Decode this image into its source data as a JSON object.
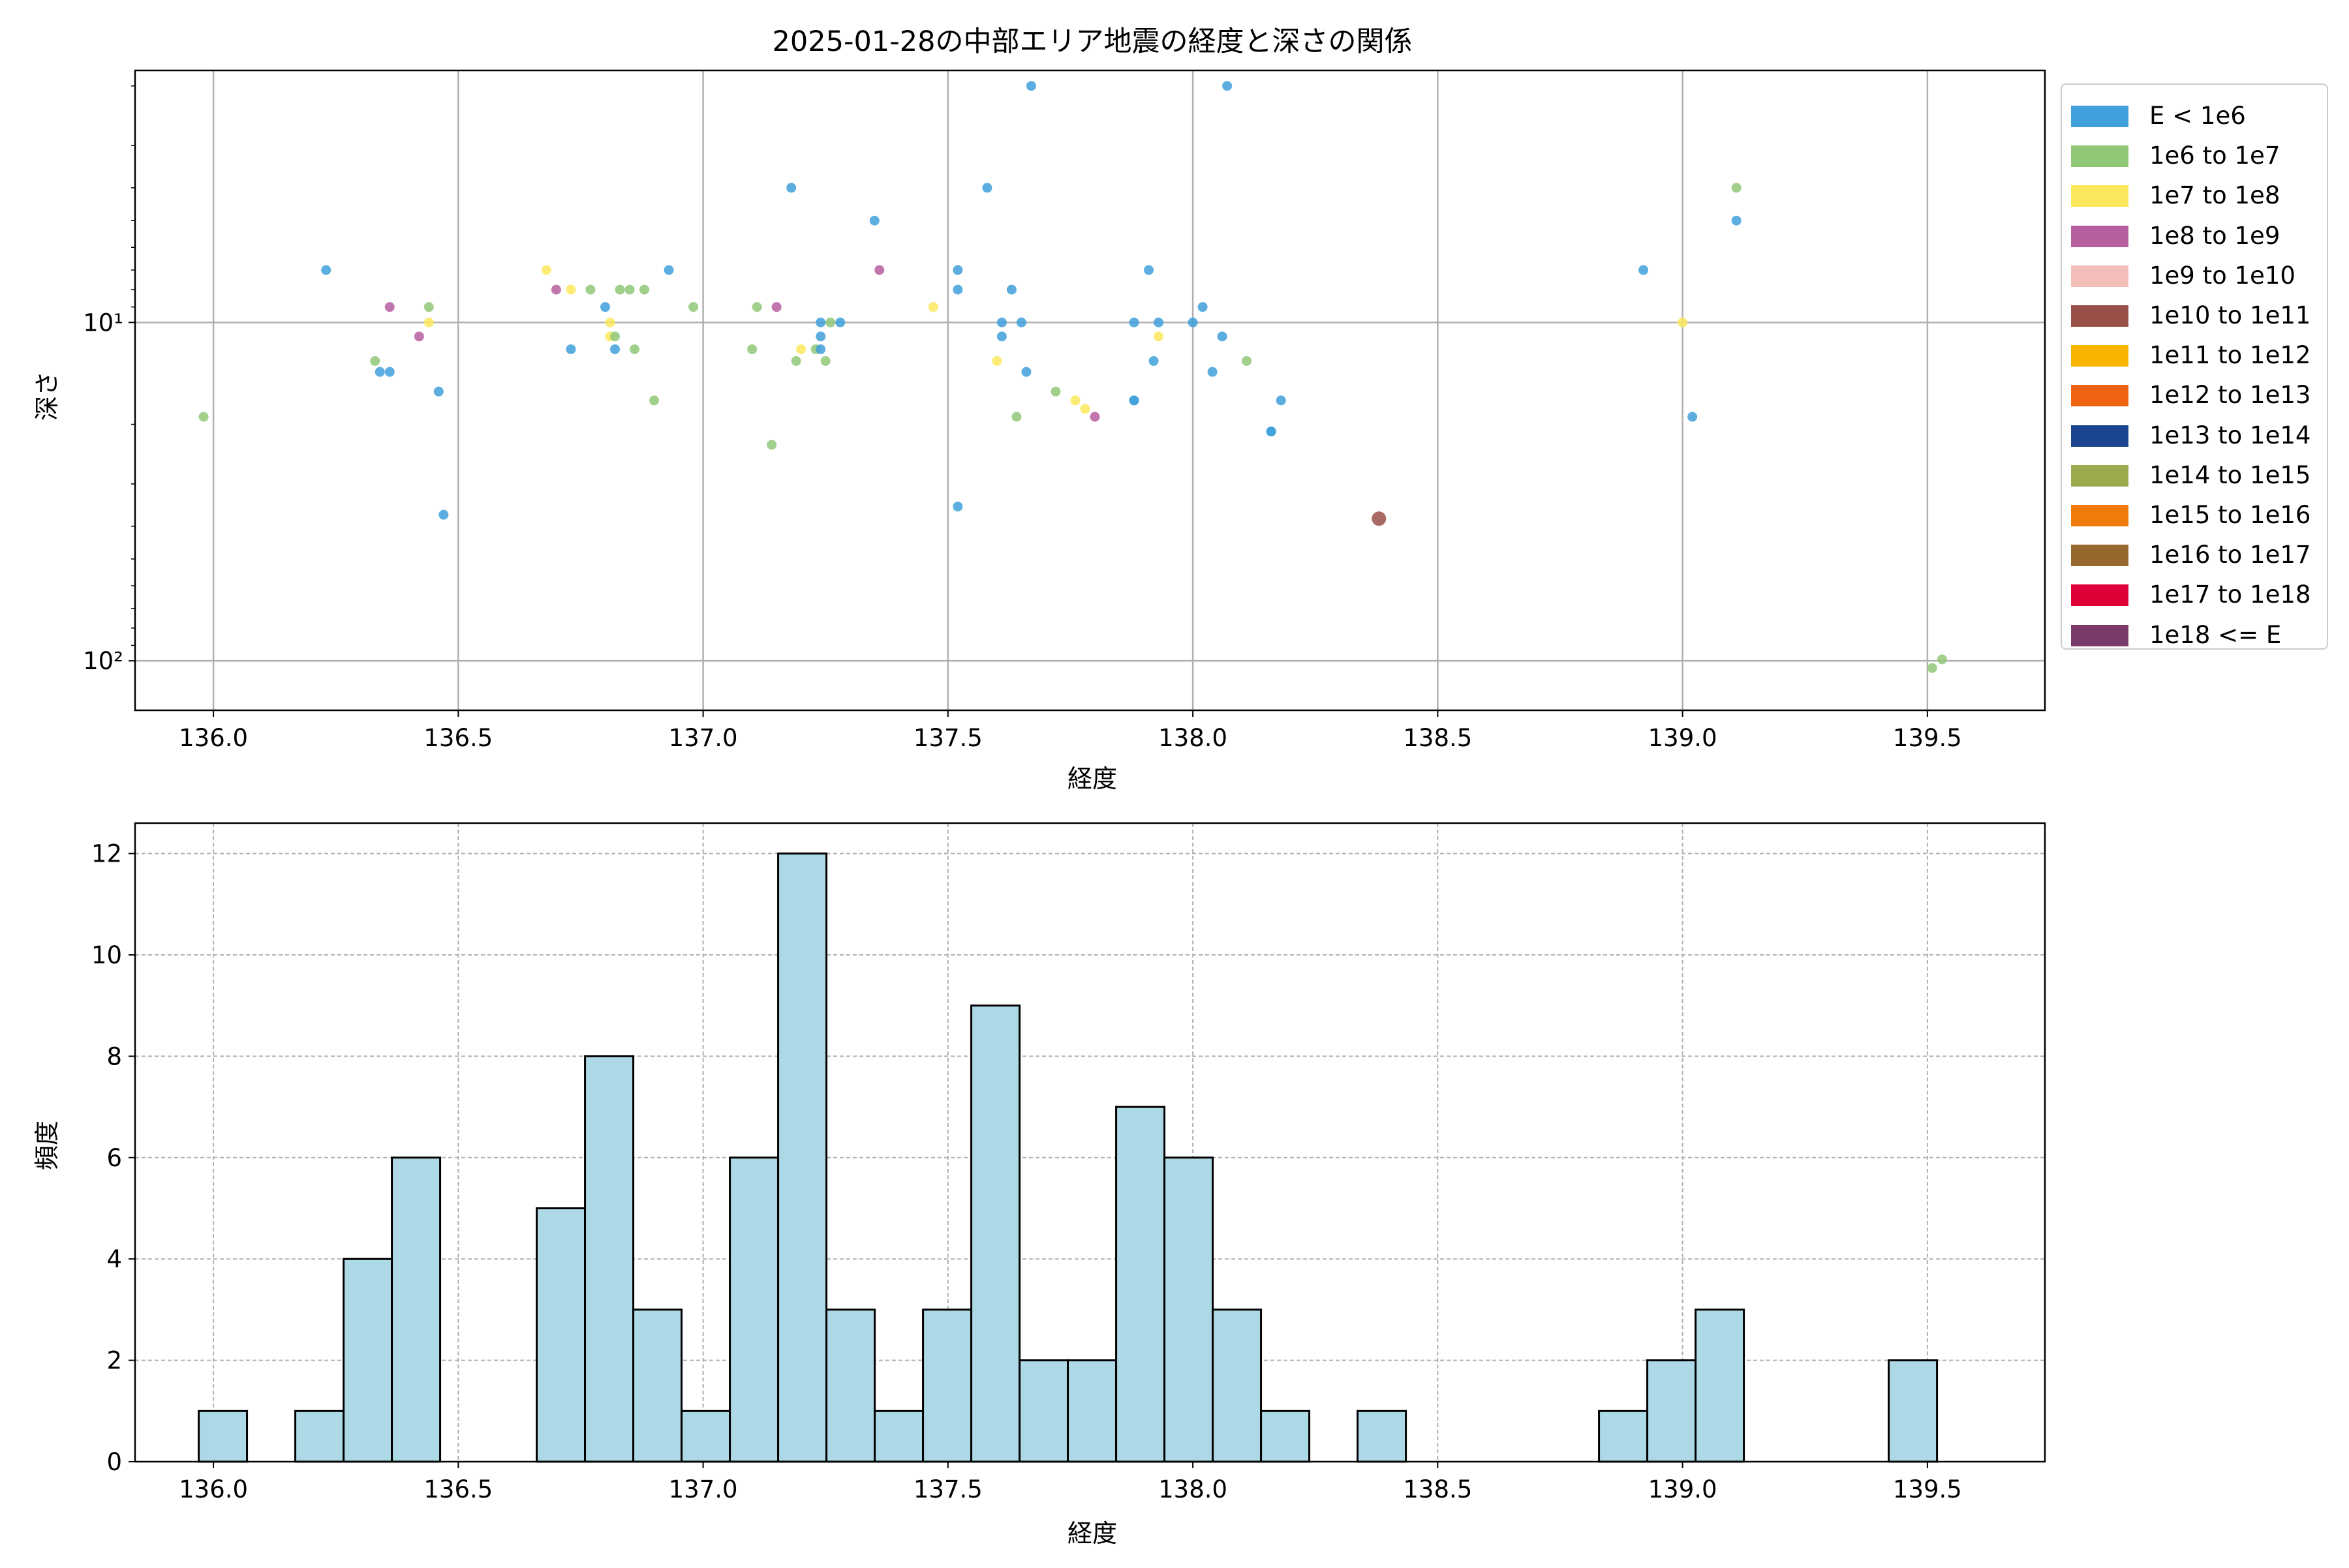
{
  "chart_data": [
    {
      "type": "scatter",
      "title": "2025-01-28の中部エリア地震の経度と深さの関係",
      "xlabel": "経度",
      "ylabel": "深さ",
      "xlim": [
        135.84,
        139.74
      ],
      "ylim": [
        140,
        1.8
      ],
      "yscale": "log",
      "y_inverted": true,
      "xticks": [
        136.0,
        136.5,
        137.0,
        137.5,
        138.0,
        138.5,
        139.0,
        139.5
      ],
      "xtick_labels": [
        "136.0",
        "136.5",
        "137.0",
        "137.5",
        "138.0",
        "138.5",
        "139.0",
        "139.5"
      ],
      "yticks": [
        10,
        100
      ],
      "ytick_labels": [
        "10¹",
        "10²"
      ],
      "grid": true,
      "legend_position": "outside right",
      "legend": [
        {
          "label": "E < 1e6",
          "color": "#3fa0db"
        },
        {
          "label": "1e6 to 1e7",
          "color": "#90c878"
        },
        {
          "label": "1e7 to 1e8",
          "color": "#fbe85c"
        },
        {
          "label": "1e8 to 1e9",
          "color": "#b65fa0"
        },
        {
          "label": "1e9 to 1e10",
          "color": "#f4bfbb"
        },
        {
          "label": "1e10 to 1e11",
          "color": "#9a5049"
        },
        {
          "label": "1e11 to 1e12",
          "color": "#f7b500"
        },
        {
          "label": "1e12 to 1e13",
          "color": "#ee6311"
        },
        {
          "label": "1e13 to 1e14",
          "color": "#1a4490"
        },
        {
          "label": "1e14 to 1e15",
          "color": "#9aab4e"
        },
        {
          "label": "1e15 to 1e16",
          "color": "#ef7b0a"
        },
        {
          "label": "1e16 to 1e17",
          "color": "#94692b"
        },
        {
          "label": "1e17 to 1e18",
          "color": "#de0037"
        },
        {
          "label": "1e18 <= E",
          "color": "#7b3b6a"
        }
      ],
      "points": [
        {
          "x": 135.98,
          "y": 19,
          "c": 1
        },
        {
          "x": 136.23,
          "y": 7,
          "c": 0
        },
        {
          "x": 136.33,
          "y": 13,
          "c": 1
        },
        {
          "x": 136.34,
          "y": 14,
          "c": 0
        },
        {
          "x": 136.36,
          "y": 14,
          "c": 0
        },
        {
          "x": 136.36,
          "y": 9,
          "c": 3
        },
        {
          "x": 136.42,
          "y": 11,
          "c": 3
        },
        {
          "x": 136.44,
          "y": 9,
          "c": 1
        },
        {
          "x": 136.44,
          "y": 10,
          "c": 2
        },
        {
          "x": 136.46,
          "y": 16,
          "c": 0
        },
        {
          "x": 136.47,
          "y": 37,
          "c": 0
        },
        {
          "x": 136.68,
          "y": 7,
          "c": 2
        },
        {
          "x": 136.7,
          "y": 8,
          "c": 3
        },
        {
          "x": 136.73,
          "y": 8,
          "c": 2
        },
        {
          "x": 136.73,
          "y": 12,
          "c": 0
        },
        {
          "x": 136.77,
          "y": 8,
          "c": 1
        },
        {
          "x": 136.8,
          "y": 9,
          "c": 0
        },
        {
          "x": 136.81,
          "y": 10,
          "c": 2
        },
        {
          "x": 136.81,
          "y": 11,
          "c": 2
        },
        {
          "x": 136.82,
          "y": 11,
          "c": 1
        },
        {
          "x": 136.82,
          "y": 12,
          "c": 0
        },
        {
          "x": 136.83,
          "y": 8,
          "c": 1
        },
        {
          "x": 136.85,
          "y": 8,
          "c": 1
        },
        {
          "x": 136.86,
          "y": 12,
          "c": 1
        },
        {
          "x": 136.88,
          "y": 8,
          "c": 1
        },
        {
          "x": 136.9,
          "y": 17,
          "c": 1
        },
        {
          "x": 136.93,
          "y": 7,
          "c": 0
        },
        {
          "x": 136.98,
          "y": 9,
          "c": 1
        },
        {
          "x": 137.1,
          "y": 12,
          "c": 1
        },
        {
          "x": 137.11,
          "y": 9,
          "c": 1
        },
        {
          "x": 137.14,
          "y": 23,
          "c": 1
        },
        {
          "x": 137.15,
          "y": 9,
          "c": 3
        },
        {
          "x": 137.18,
          "y": 4,
          "c": 0
        },
        {
          "x": 137.19,
          "y": 13,
          "c": 1
        },
        {
          "x": 137.2,
          "y": 12,
          "c": 2
        },
        {
          "x": 137.23,
          "y": 12,
          "c": 1
        },
        {
          "x": 137.24,
          "y": 11,
          "c": 0
        },
        {
          "x": 137.24,
          "y": 10,
          "c": 0
        },
        {
          "x": 137.24,
          "y": 12,
          "c": 0
        },
        {
          "x": 137.25,
          "y": 13,
          "c": 1
        },
        {
          "x": 137.26,
          "y": 10,
          "c": 1
        },
        {
          "x": 137.28,
          "y": 10,
          "c": 0
        },
        {
          "x": 137.35,
          "y": 5,
          "c": 0
        },
        {
          "x": 137.36,
          "y": 7,
          "c": 3
        },
        {
          "x": 137.47,
          "y": 9,
          "c": 2
        },
        {
          "x": 137.52,
          "y": 35,
          "c": 0
        },
        {
          "x": 137.52,
          "y": 7,
          "c": 0
        },
        {
          "x": 137.52,
          "y": 8,
          "c": 0
        },
        {
          "x": 137.58,
          "y": 4,
          "c": 0
        },
        {
          "x": 137.6,
          "y": 13,
          "c": 2
        },
        {
          "x": 137.61,
          "y": 11,
          "c": 0
        },
        {
          "x": 137.61,
          "y": 10,
          "c": 0
        },
        {
          "x": 137.63,
          "y": 8,
          "c": 0
        },
        {
          "x": 137.64,
          "y": 19,
          "c": 1
        },
        {
          "x": 137.65,
          "y": 10,
          "c": 0
        },
        {
          "x": 137.66,
          "y": 14,
          "c": 0
        },
        {
          "x": 137.67,
          "y": 2,
          "c": 0
        },
        {
          "x": 137.72,
          "y": 16,
          "c": 1
        },
        {
          "x": 137.76,
          "y": 17,
          "c": 2
        },
        {
          "x": 137.78,
          "y": 18,
          "c": 2
        },
        {
          "x": 137.8,
          "y": 19,
          "c": 3
        },
        {
          "x": 137.88,
          "y": 17,
          "c": 0
        },
        {
          "x": 137.88,
          "y": 17,
          "c": 0
        },
        {
          "x": 137.88,
          "y": 10,
          "c": 0
        },
        {
          "x": 137.91,
          "y": 7,
          "c": 0
        },
        {
          "x": 137.92,
          "y": 13,
          "c": 0
        },
        {
          "x": 137.93,
          "y": 10,
          "c": 0
        },
        {
          "x": 137.93,
          "y": 11,
          "c": 2
        },
        {
          "x": 138.0,
          "y": 10,
          "c": 0
        },
        {
          "x": 138.02,
          "y": 9,
          "c": 0
        },
        {
          "x": 138.04,
          "y": 14,
          "c": 0
        },
        {
          "x": 138.06,
          "y": 11,
          "c": 0
        },
        {
          "x": 138.07,
          "y": 2,
          "c": 0
        },
        {
          "x": 138.11,
          "y": 13,
          "c": 1
        },
        {
          "x": 138.16,
          "y": 21,
          "c": 0
        },
        {
          "x": 138.16,
          "y": 21,
          "c": 0
        },
        {
          "x": 138.18,
          "y": 17,
          "c": 0
        },
        {
          "x": 138.38,
          "y": 38,
          "c": 5,
          "large": true
        },
        {
          "x": 138.92,
          "y": 7,
          "c": 0
        },
        {
          "x": 139.0,
          "y": 10,
          "c": 2
        },
        {
          "x": 139.02,
          "y": 19,
          "c": 0
        },
        {
          "x": 139.11,
          "y": 4,
          "c": 1
        },
        {
          "x": 139.11,
          "y": 5,
          "c": 0
        },
        {
          "x": 139.51,
          "y": 105,
          "c": 1
        },
        {
          "x": 139.53,
          "y": 99,
          "c": 1
        }
      ]
    },
    {
      "type": "bar",
      "subtype": "histogram",
      "xlabel": "経度",
      "ylabel": "頻度",
      "xlim": [
        135.84,
        139.74
      ],
      "ylim": [
        0,
        12.6
      ],
      "bin_width": 0.0986,
      "bin_start": 135.97,
      "xticks": [
        136.0,
        136.5,
        137.0,
        137.5,
        138.0,
        138.5,
        139.0,
        139.5
      ],
      "xtick_labels": [
        "136.0",
        "136.5",
        "137.0",
        "137.5",
        "138.0",
        "138.5",
        "139.0",
        "139.5"
      ],
      "yticks": [
        0,
        2,
        4,
        6,
        8,
        10,
        12
      ],
      "ytick_labels": [
        "0",
        "2",
        "4",
        "6",
        "8",
        "10",
        "12"
      ],
      "grid": true,
      "bar_color": "#add8e6",
      "edge_color": "#000000",
      "values": [
        1,
        0,
        1,
        4,
        6,
        0,
        0,
        5,
        8,
        3,
        1,
        6,
        12,
        3,
        1,
        3,
        9,
        2,
        2,
        7,
        6,
        3,
        1,
        0,
        1,
        0,
        0,
        0,
        0,
        1,
        2,
        3,
        0,
        0,
        0,
        2
      ]
    }
  ]
}
